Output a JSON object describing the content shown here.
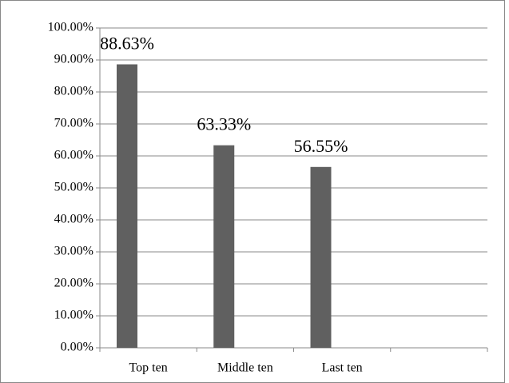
{
  "chart_data": {
    "type": "bar",
    "categories": [
      "Top ten",
      "Middle ten",
      "Last ten",
      null
    ],
    "values": [
      88.63,
      63.33,
      56.55,
      null
    ],
    "value_labels": [
      "88.63%",
      "63.33%",
      "56.55%",
      null
    ],
    "color": "#606060",
    "ylim": [
      0,
      100
    ],
    "yticks": [
      {
        "value": 0,
        "label": "0.00%"
      },
      {
        "value": 10,
        "label": "10.00%"
      },
      {
        "value": 20,
        "label": "20.00%"
      },
      {
        "value": 30,
        "label": "30.00%"
      },
      {
        "value": 40,
        "label": "40.00%"
      },
      {
        "value": 50,
        "label": "50.00%"
      },
      {
        "value": 60,
        "label": "60.00%"
      },
      {
        "value": 70,
        "label": "70.00%"
      },
      {
        "value": 80,
        "label": "80.00%"
      },
      {
        "value": 90,
        "label": "90.00%"
      },
      {
        "value": 100,
        "label": "100.00%"
      }
    ],
    "grid": true
  }
}
